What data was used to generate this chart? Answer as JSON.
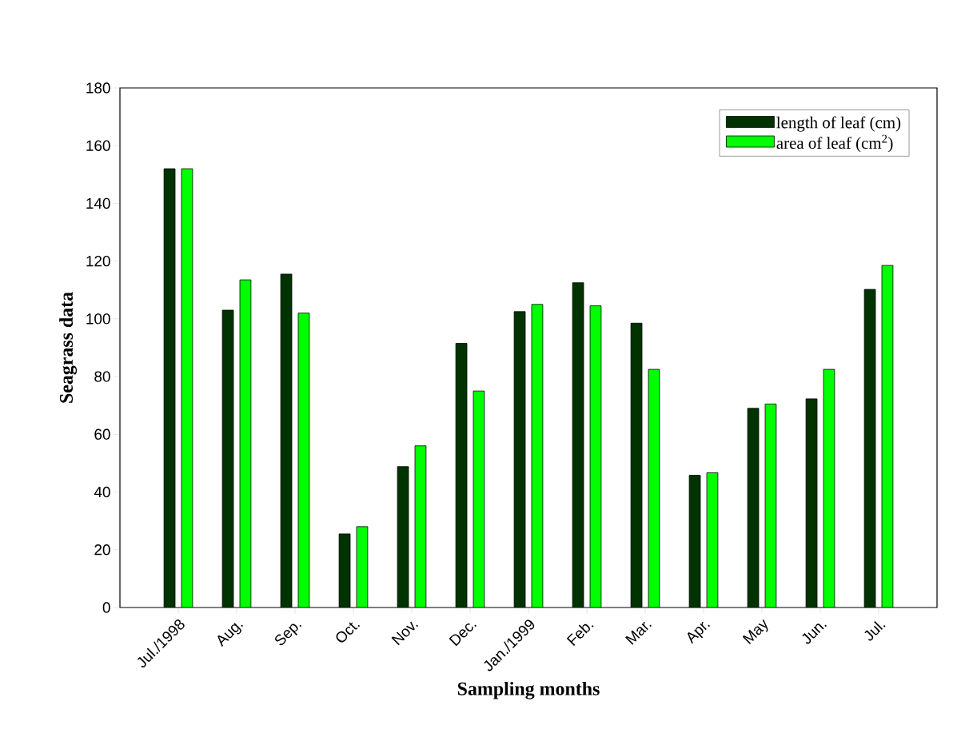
{
  "chart_data": {
    "type": "bar",
    "xlabel": "Sampling months",
    "ylabel": "Seagrass data",
    "categories": [
      "Jul./1998",
      "Aug.",
      "Sep.",
      "Oct.",
      "Nov.",
      "Dec.",
      "Jan./1999",
      "Feb.",
      "Mar.",
      "Apr.",
      "May",
      "Jun.",
      "Jul."
    ],
    "series": [
      {
        "name": "length of leaf (cm)",
        "color": "#003300",
        "values": [
          152,
          103,
          115.5,
          25.5,
          48.8,
          91.5,
          102.5,
          112.5,
          98.5,
          45.8,
          69,
          72.3,
          110.2
        ]
      },
      {
        "name": "area of leaf (cm$^{2}$)",
        "color": "#00ff00",
        "values": [
          152,
          113.5,
          102,
          28,
          56,
          75,
          105,
          104.5,
          82.5,
          46.7,
          70.5,
          82.5,
          118.5
        ]
      }
    ],
    "ylim": [
      0,
      180
    ],
    "yticks": [
      0,
      20,
      40,
      60,
      80,
      100,
      120,
      140,
      160,
      180
    ],
    "grid": false,
    "legend": "top right"
  }
}
